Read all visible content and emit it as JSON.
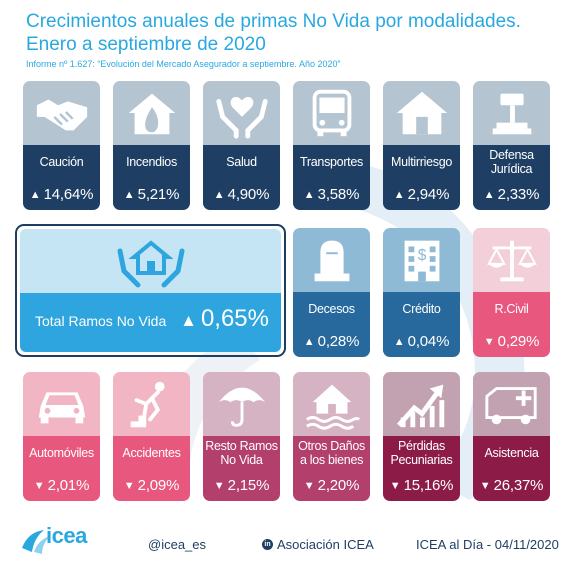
{
  "header": {
    "title_line1": "Crecimientos anuales de primas No Vida por modalidades.",
    "title_line2": "Enero a septiembre de 2020",
    "subtitle": "Informe nº 1.627: “Evolución del Mercado Asegurador a septiembre. Año 2020”"
  },
  "chart_data": {
    "type": "table",
    "title": "Crecimientos anuales de primas No Vida por modalidades. Enero a septiembre de 2020",
    "unit": "%",
    "categories": [
      "Caución",
      "Incendios",
      "Salud",
      "Transportes",
      "Multirriesgo",
      "Defensa Jurídica",
      "Total Ramos No Vida",
      "Decesos",
      "Crédito",
      "R.Civil",
      "Automóviles",
      "Accidentes",
      "Resto Ramos No Vida",
      "Otros Daños a los bienes",
      "Pérdidas Pecuniarias",
      "Asistencia"
    ],
    "values": [
      14.64,
      5.21,
      4.9,
      3.58,
      2.94,
      2.33,
      0.65,
      0.28,
      0.04,
      -0.29,
      -2.01,
      -2.09,
      -2.15,
      -2.2,
      -15.16,
      -26.37
    ]
  },
  "cards": {
    "caucion": {
      "label": "Caución",
      "value": "14,64%",
      "arrow": "▲",
      "icon": "handshake-icon"
    },
    "incendios": {
      "label": "Incendios",
      "value": "5,21%",
      "arrow": "▲",
      "icon": "house-fire-icon"
    },
    "salud": {
      "label": "Salud",
      "value": "4,90%",
      "arrow": "▲",
      "icon": "hands-heart-icon"
    },
    "transportes": {
      "label": "Transportes",
      "value": "3,58%",
      "arrow": "▲",
      "icon": "bus-icon"
    },
    "multirriesgo": {
      "label": "Multirriesgo",
      "value": "2,94%",
      "arrow": "▲",
      "icon": "house-icon"
    },
    "defensa": {
      "label_line1": "Defensa",
      "label_line2": "Jurídica",
      "value": "2,33%",
      "arrow": "▲",
      "icon": "gavel-icon"
    },
    "decesos": {
      "label": "Decesos",
      "value": "0,28%",
      "arrow": "▲",
      "icon": "tombstone-icon"
    },
    "credito": {
      "label": "Crédito",
      "value": "0,04%",
      "arrow": "▲",
      "icon": "bank-building-icon"
    },
    "rcivil": {
      "label": "R.Civil",
      "value": "0,29%",
      "arrow": "▼",
      "icon": "scales-icon"
    },
    "automoviles": {
      "label": "Automóviles",
      "value": "2,01%",
      "arrow": "▼",
      "icon": "car-icon"
    },
    "accidentes": {
      "label": "Accidentes",
      "value": "2,09%",
      "arrow": "▼",
      "icon": "falling-person-icon"
    },
    "resto": {
      "label_line1": "Resto Ramos",
      "label_line2": "No Vida",
      "value": "2,15%",
      "arrow": "▼",
      "icon": "umbrella-icon"
    },
    "otros": {
      "label_line1": "Otros Daños",
      "label_line2": "a los bienes",
      "value": "2,20%",
      "arrow": "▼",
      "icon": "flooded-house-icon"
    },
    "perdidas": {
      "label_line1": "Pérdidas",
      "label_line2": "Pecuniarias",
      "value": "15,16%",
      "arrow": "▼",
      "icon": "rising-arrow-icon"
    },
    "asistencia": {
      "label": "Asistencia",
      "value": "26,37%",
      "arrow": "▼",
      "icon": "ambulance-icon"
    }
  },
  "total": {
    "label": "Total Ramos No Vida",
    "value": "0,65%",
    "arrow": "▲",
    "icon": "house-hands-icon"
  },
  "footer": {
    "logo_text": "icea",
    "twitter": "@icea_es",
    "linkedin_badge": "in",
    "linkedin": "Asociación ICEA",
    "source": "ICEA al Día - 04/11/2020"
  },
  "colors": {
    "title": "#29a8e0",
    "navy": "#1e3f63",
    "blue": "#27699d",
    "total": "#2ea5df",
    "pink": "#e8577d",
    "mauve": "#b23f6c",
    "maroon": "#8c1c47"
  }
}
